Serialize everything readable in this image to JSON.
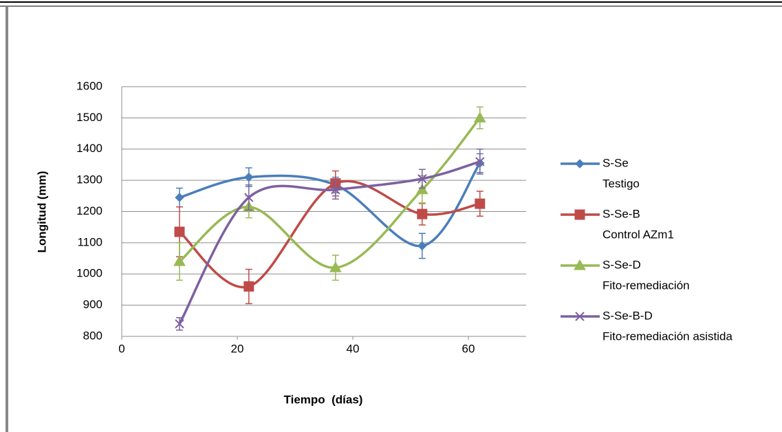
{
  "chart_data": {
    "type": "scatter",
    "smooth": true,
    "grid": true,
    "x_label": "Tiempo  (días)",
    "y_label": "Longitud (mm)",
    "xlim": [
      0,
      70
    ],
    "xticks": [
      0,
      20,
      40,
      60
    ],
    "ylim": [
      800,
      1600
    ],
    "yticks": [
      800,
      900,
      1000,
      1100,
      1200,
      1300,
      1400,
      1500,
      1600
    ],
    "x": [
      10,
      22,
      37,
      52,
      62
    ],
    "series": [
      {
        "name": "S-Se",
        "label": "Testigo",
        "color": "#4a7ebb",
        "marker": "diamond",
        "values": [
          1245,
          1310,
          1285,
          1090,
          1355
        ],
        "errors": [
          30,
          30,
          25,
          40,
          30
        ]
      },
      {
        "name": "S-Se-B",
        "label": "Control AZm1",
        "color": "#be4b48",
        "marker": "square",
        "values": [
          1135,
          960,
          1290,
          1192,
          1225
        ],
        "errors": [
          80,
          55,
          40,
          35,
          40
        ]
      },
      {
        "name": "S-Se-D",
        "label": "Fito-remediación",
        "color": "#98b954",
        "marker": "triangle",
        "values": [
          1040,
          1215,
          1020,
          1270,
          1500
        ],
        "errors": [
          60,
          35,
          40,
          45,
          35
        ]
      },
      {
        "name": "S-Se-B-D",
        "label": "Fito-remediación asistida",
        "color": "#7d60a0",
        "marker": "x",
        "values": [
          840,
          1245,
          1270,
          1305,
          1360
        ],
        "errors": [
          20,
          40,
          30,
          30,
          40
        ]
      }
    ]
  }
}
